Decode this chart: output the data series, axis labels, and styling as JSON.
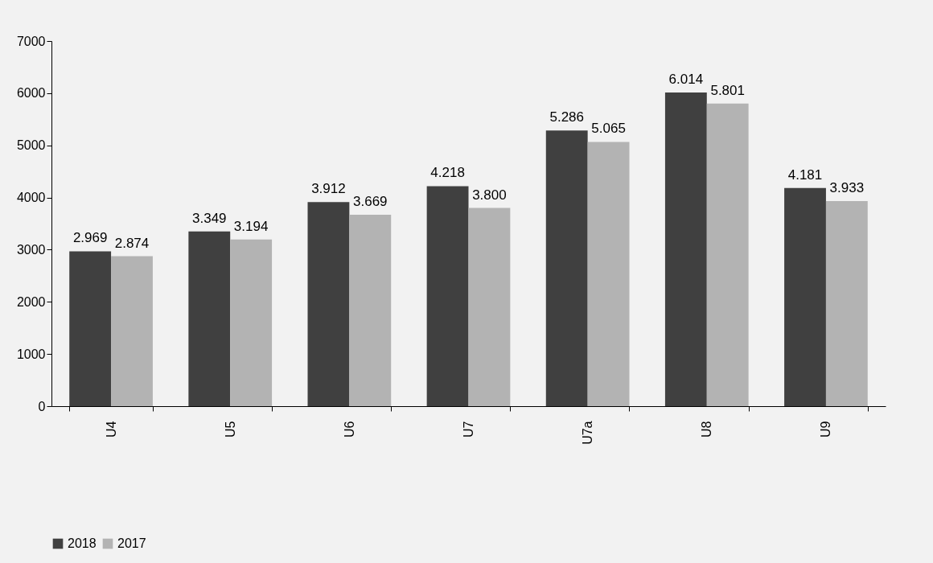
{
  "chart_data": {
    "type": "bar",
    "categories": [
      "U4",
      "U5",
      "U6",
      "U7",
      "U7a",
      "U8",
      "U9"
    ],
    "series": [
      {
        "name": "2018",
        "color": "#404040",
        "values": [
          2969,
          3349,
          3912,
          4218,
          5286,
          6014,
          4181
        ],
        "value_labels": [
          "2.969",
          "3.349",
          "3.912",
          "4.218",
          "5.286",
          "6.014",
          "4.181"
        ]
      },
      {
        "name": "2017",
        "color": "#b3b3b3",
        "values": [
          2874,
          3194,
          3669,
          3800,
          5065,
          5801,
          3933
        ],
        "value_labels": [
          "2.874",
          "3.194",
          "3.669",
          "3.800",
          "5.065",
          "5.801",
          "3.933"
        ]
      }
    ],
    "ylim": [
      0,
      7000
    ],
    "yticks": [
      0,
      1000,
      2000,
      3000,
      4000,
      5000,
      6000,
      7000
    ],
    "grid": false,
    "legend": "bottom"
  }
}
